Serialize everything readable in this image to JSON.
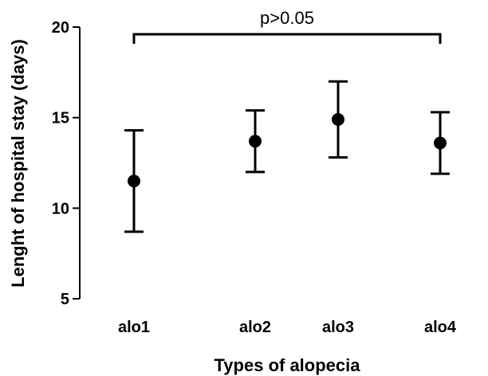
{
  "chart_data": {
    "type": "scatter",
    "title": "",
    "xlabel": "Types of alopecia",
    "ylabel": "Lenght of hospital stay (days)",
    "categories": [
      "alo1",
      "alo2",
      "alo3",
      "alo4"
    ],
    "ylim": [
      5,
      20
    ],
    "yticks": [
      "5",
      "10",
      "15",
      "20"
    ],
    "grid": false,
    "points": [
      {
        "category": "alo1",
        "mean": 11.5,
        "err_low": 8.7,
        "err_high": 14.3
      },
      {
        "category": "alo2",
        "mean": 13.7,
        "err_low": 12.0,
        "err_high": 15.4
      },
      {
        "category": "alo3",
        "mean": 14.9,
        "err_low": 12.8,
        "err_high": 17.0
      },
      {
        "category": "alo4",
        "mean": 13.6,
        "err_low": 11.9,
        "err_high": 15.3
      }
    ],
    "annotation": {
      "text": "p>0.05",
      "from": "alo1",
      "to": "alo4"
    },
    "marker_color": "#000000"
  }
}
